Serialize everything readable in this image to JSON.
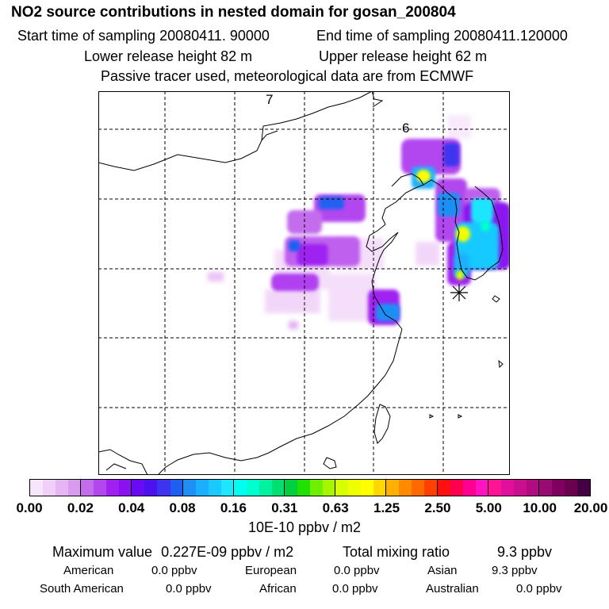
{
  "header": {
    "title": "NO2 source contributions in nested domain for gosan_200804",
    "start_time": "Start time of sampling 20080411. 90000",
    "end_time": "End time of sampling 20080411.120000",
    "lower_release": "Lower release height   82 m",
    "upper_release": "Upper release height   62 m",
    "tracer_note": "Passive tracer used, meteorological data are from ECMWF"
  },
  "map": {
    "grid_labels": [
      "7",
      "6"
    ],
    "receptor_marker": "gosan-receptor"
  },
  "colorbar": {
    "colors": [
      "#f7e6fb",
      "#f0d0f8",
      "#e6b6f4",
      "#d89cef",
      "#c36ded",
      "#b347ef",
      "#a020f0",
      "#8a12f0",
      "#6a0af2",
      "#4d10ee",
      "#3f34ee",
      "#1f5ff0",
      "#1e8ff5",
      "#1ab0ff",
      "#19c9ff",
      "#1ee6ff",
      "#00fff0",
      "#00ffd0",
      "#00f2a0",
      "#00e070",
      "#00d040",
      "#20e000",
      "#70f000",
      "#a8f500",
      "#d8ff00",
      "#f0ff00",
      "#ffff00",
      "#ffd700",
      "#ffb000",
      "#ff8c00",
      "#ff6a00",
      "#ff4000",
      "#ff1010",
      "#ff0050",
      "#ff0090",
      "#ff14c0",
      "#ff1493",
      "#e0109c",
      "#c8108e",
      "#b00c80",
      "#980b70",
      "#800060",
      "#6a004f",
      "#440040"
    ],
    "tick_labels": [
      "0.00",
      "0.02",
      "0.04",
      "0.08",
      "0.16",
      "0.31",
      "0.63",
      "1.25",
      "2.50",
      "5.00",
      "10.00",
      "20.00"
    ],
    "units": "10E-10 ppbv / m2"
  },
  "summary": {
    "maximum_label": "Maximum value",
    "maximum_value": "0.227E-09 ppbv / m2",
    "total_label": "Total mixing ratio",
    "total_value": "9.3 ppbv",
    "regions": [
      {
        "name": "American",
        "value": "0.0 ppbv"
      },
      {
        "name": "European",
        "value": "0.0 ppbv"
      },
      {
        "name": "Asian",
        "value": "9.3 ppbv"
      },
      {
        "name": "South American",
        "value": "0.0 ppbv"
      },
      {
        "name": "African",
        "value": "0.0 ppbv"
      },
      {
        "name": "Australian",
        "value": "0.0 ppbv"
      }
    ]
  }
}
